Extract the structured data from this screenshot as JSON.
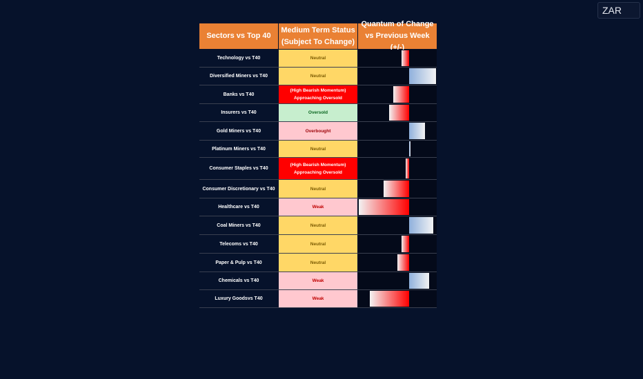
{
  "currency": "ZAR",
  "table": {
    "headers": [
      "Sectors vs Top 40",
      "Medium Term Status (Subject To Change)",
      "Quantum of Change vs Previous Week (+/-)"
    ],
    "rows": [
      {
        "sector": "Technology vs T40",
        "status": "Neutral",
        "status_type": "neutral",
        "change": -0.11
      },
      {
        "sector": "Diversified Miners vs T40",
        "status": "Neutral",
        "status_type": "neutral",
        "change": 0.39
      },
      {
        "sector": "Banks vs T40",
        "status": "(High Bearish Momentum) Approaching Oversold",
        "status_type": "red",
        "change": -0.23
      },
      {
        "sector": "Insurers vs T40",
        "status": "Oversold",
        "status_type": "oversold",
        "change": -0.29
      },
      {
        "sector": "Gold Miners vs T40",
        "status": "Overbought",
        "status_type": "overbought",
        "change": 0.23
      },
      {
        "sector": "Platinum Miners vs T40",
        "status": "Neutral",
        "status_type": "neutral",
        "change": 0.02
      },
      {
        "sector": "Consumer Staples vs T40",
        "status": "(High Bearish Momentum) Approaching Oversold",
        "status_type": "red",
        "change": -0.05
      },
      {
        "sector": "Consumer Discretionary vs T40",
        "status": "Neutral",
        "status_type": "neutral",
        "change": -0.37
      },
      {
        "sector": "Healthcare vs T40",
        "status": "Weak",
        "status_type": "weak",
        "change": -0.73
      },
      {
        "sector": "Coal Miners vs T40",
        "status": "Neutral",
        "status_type": "neutral",
        "change": 0.35
      },
      {
        "sector": "Telecoms vs T40",
        "status": "Neutral",
        "status_type": "neutral",
        "change": -0.11
      },
      {
        "sector": "Paper & Pulp vs T40",
        "status": "Neutral",
        "status_type": "neutral",
        "change": -0.17
      },
      {
        "sector": "Chemicals vs T40",
        "status": "Weak",
        "status_type": "weak",
        "change": 0.29
      },
      {
        "sector": "Luxury Goodsvs T40",
        "status": "Weak",
        "status_type": "weak",
        "change": -0.57
      }
    ]
  }
}
